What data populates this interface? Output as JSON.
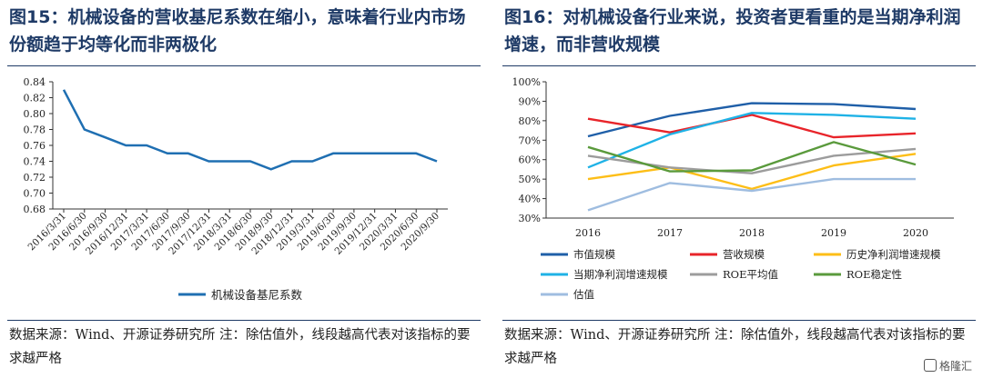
{
  "left_panel": {
    "title": "图15：机械设备的营收基尼系数在缩小，意味着行业内市场份额趋于均等化而非两极化",
    "source": "数据来源：Wind、开源证券研究所 注：除估值外，线段越高代表对该指标的要求越严格"
  },
  "right_panel": {
    "title": "图16：对机械设备行业来说，投资者更看重的是当期净利润增速，而非营收规模",
    "source": "数据来源：Wind、开源证券研究所 注：除估值外，线段越高代表对该指标的要求越严格"
  },
  "chart_data": [
    {
      "type": "line",
      "title": "",
      "categories": [
        "2016/3/31",
        "2016/6/30",
        "2016/9/30",
        "2016/12/31",
        "2017/3/31",
        "2017/6/30",
        "2017/9/30",
        "2017/12/31",
        "2018/3/31",
        "2018/6/30",
        "2018/9/30",
        "2018/12/31",
        "2019/3/31",
        "2019/6/30",
        "2019/9/30",
        "2019/12/31",
        "2020/3/31",
        "2020/6/30",
        "2020/9/30"
      ],
      "series": [
        {
          "name": "机械设备基尼系数",
          "color": "#1f6fb2",
          "values": [
            0.83,
            0.78,
            0.77,
            0.76,
            0.76,
            0.75,
            0.75,
            0.74,
            0.74,
            0.74,
            0.73,
            0.74,
            0.74,
            0.75,
            0.75,
            0.75,
            0.75,
            0.75,
            0.74
          ]
        }
      ],
      "ylim": [
        0.68,
        0.84
      ],
      "yticks": [
        "0.68",
        "0.70",
        "0.72",
        "0.74",
        "0.76",
        "0.78",
        "0.80",
        "0.82",
        "0.84"
      ],
      "legend": "bottom"
    },
    {
      "type": "line",
      "title": "",
      "categories": [
        "2016",
        "2017",
        "2018",
        "2019",
        "2020"
      ],
      "series": [
        {
          "name": "市值规模",
          "color": "#1f5fa8",
          "values": [
            72,
            82.5,
            89,
            88.5,
            86
          ]
        },
        {
          "name": "营收规模",
          "color": "#e8242a",
          "values": [
            81,
            74,
            83,
            71.5,
            73.5
          ]
        },
        {
          "name": "历史净利润增速规模",
          "color": "#fdbe17",
          "values": [
            50,
            56,
            45,
            57,
            63
          ]
        },
        {
          "name": "当期净利润增速规模",
          "color": "#1fb2e6",
          "values": [
            56,
            73,
            84,
            83,
            81
          ]
        },
        {
          "name": "ROE平均值",
          "color": "#9c9c9c",
          "values": [
            62,
            56,
            53,
            62,
            65.5
          ]
        },
        {
          "name": "ROE稳定性",
          "color": "#5a9a3c",
          "values": [
            66.5,
            54,
            54.5,
            69,
            57.5
          ]
        },
        {
          "name": "估值",
          "color": "#9fbde0",
          "values": [
            34,
            48,
            44,
            50,
            50
          ]
        }
      ],
      "ylim": [
        30,
        100
      ],
      "yticks": [
        "30%",
        "40%",
        "50%",
        "60%",
        "70%",
        "80%",
        "90%",
        "100%"
      ],
      "legend": "bottom"
    }
  ],
  "watermark": "格隆汇"
}
